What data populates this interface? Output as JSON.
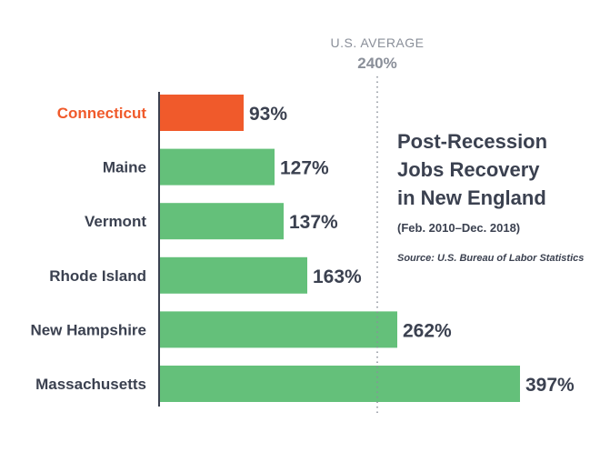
{
  "chart_data": {
    "type": "bar",
    "orientation": "horizontal",
    "title_lines": [
      "Post-Recession",
      "Jobs Recovery",
      "in New England"
    ],
    "subtitle": "(Feb. 2010–Dec. 2018)",
    "source": "Source: U.S. Bureau of Labor Statistics",
    "categories": [
      "Connecticut",
      "Maine",
      "Vermont",
      "Rhode Island",
      "New Hampshire",
      "Massachusetts"
    ],
    "values": [
      93,
      127,
      137,
      163,
      262,
      397
    ],
    "value_labels": [
      "93%",
      "127%",
      "137%",
      "163%",
      "262%",
      "397%"
    ],
    "highlight": "Connecticut",
    "reference_line": {
      "label": "U.S. AVERAGE",
      "value": 240,
      "value_label": "240%"
    },
    "xlim": [
      0,
      397
    ],
    "grid": false,
    "colors": {
      "bar": "#64c07a",
      "highlight": "#f05a2b",
      "text": "#3b4150",
      "muted": "#8a8f99",
      "axis": "#3b4150"
    }
  }
}
